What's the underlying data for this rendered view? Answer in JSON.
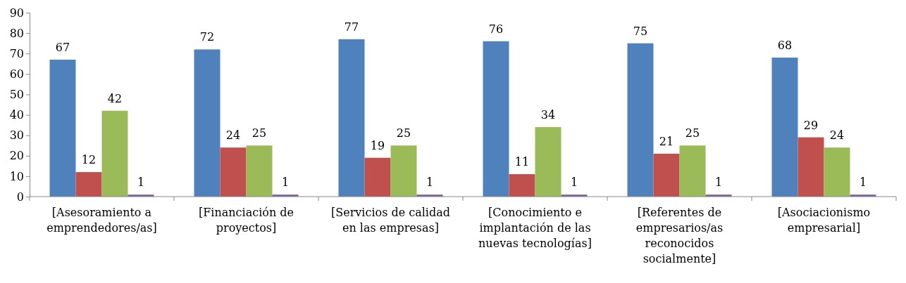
{
  "chart_data": {
    "type": "bar",
    "categories": [
      "[Asesoramiento a emprendedores/as]",
      "[Financiación de proyectos]",
      "[Servicios de calidad en las empresas]",
      "[Conocimiento e implantación de las nuevas tecnologías]",
      "[Referentes de empresarios/as reconocidos socialmente]",
      "[Asociacionismo empresarial]"
    ],
    "series": [
      {
        "color": "#4f81bd",
        "values": [
          67,
          72,
          77,
          76,
          75,
          68
        ]
      },
      {
        "color": "#c0504d",
        "values": [
          12,
          24,
          19,
          11,
          21,
          29
        ]
      },
      {
        "color": "#9bbb59",
        "values": [
          42,
          25,
          25,
          34,
          25,
          24
        ]
      },
      {
        "color": "#8064a2",
        "values": [
          1,
          1,
          1,
          1,
          1,
          1
        ]
      }
    ],
    "ylim": [
      0,
      90
    ],
    "yticks": [
      0,
      10,
      20,
      30,
      40,
      50,
      60,
      70,
      80,
      90
    ],
    "data_labels": true,
    "grid": false
  }
}
